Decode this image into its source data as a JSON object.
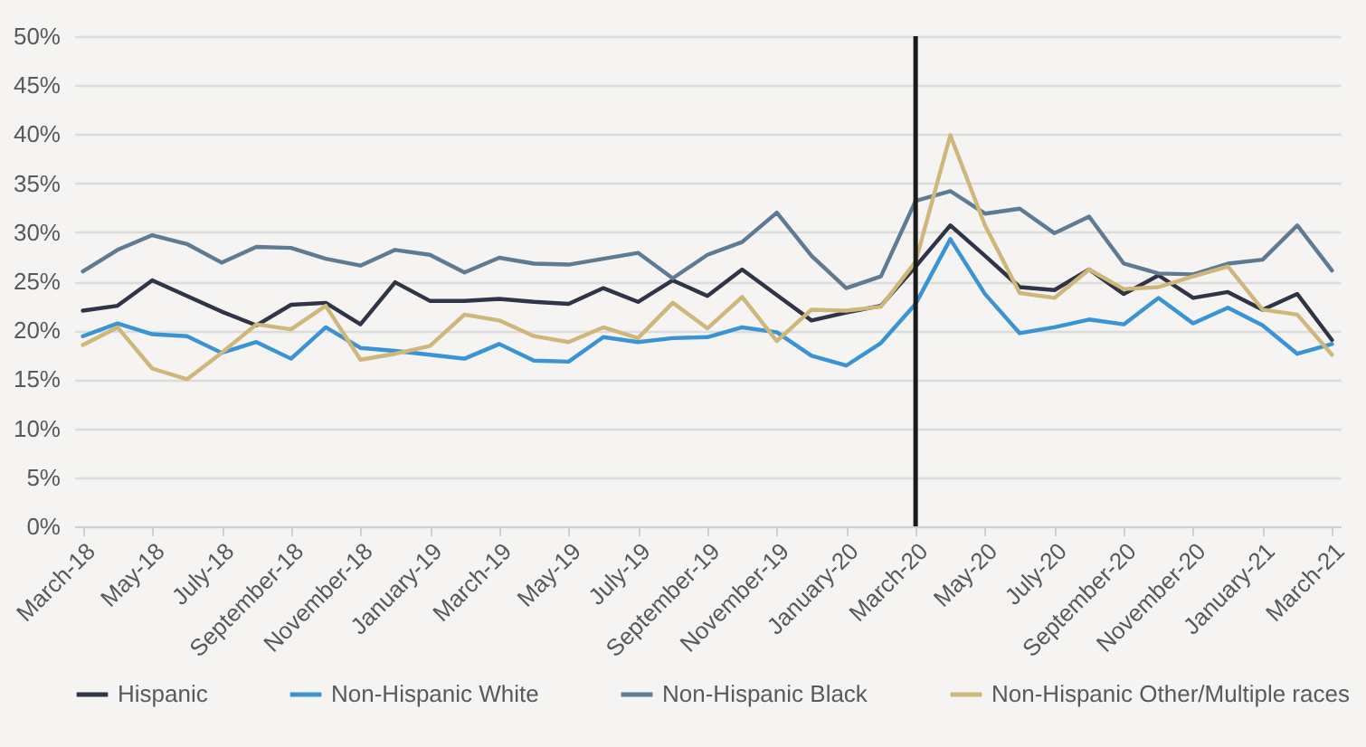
{
  "chart_data": {
    "type": "line",
    "categories": [
      "March-18",
      null,
      "May-18",
      null,
      "July-18",
      null,
      "September-18",
      null,
      "November-18",
      null,
      "January-19",
      null,
      "March-19",
      null,
      "May-19",
      null,
      "July-19",
      null,
      "September-19",
      null,
      "November-19",
      null,
      "January-20",
      null,
      "March-20",
      null,
      "May-20",
      null,
      "July-20",
      null,
      "September-20",
      null,
      "November-20",
      null,
      "January-21",
      null,
      "March-21"
    ],
    "series": [
      {
        "name": "Hispanic",
        "color": "#2f3447",
        "values": [
          22.0,
          22.5,
          25.1,
          23.5,
          21.9,
          20.5,
          22.6,
          22.8,
          20.6,
          24.9,
          23.0,
          23.0,
          23.2,
          22.9,
          22.7,
          24.3,
          22.9,
          25.1,
          23.5,
          26.2,
          23.6,
          21.0,
          21.8,
          22.5,
          26.5,
          30.7,
          27.6,
          24.4,
          24.1,
          26.2,
          23.7,
          25.6,
          23.3,
          23.9,
          22.1,
          23.7,
          19.0
        ]
      },
      {
        "name": "Non-Hispanic White",
        "color": "#3a93d3",
        "values": [
          19.4,
          20.7,
          19.6,
          19.4,
          17.7,
          18.8,
          17.1,
          20.3,
          18.2,
          17.9,
          17.5,
          17.1,
          18.6,
          16.9,
          16.8,
          19.3,
          18.8,
          19.2,
          19.3,
          20.3,
          19.8,
          17.4,
          16.4,
          18.7,
          22.7,
          29.3,
          23.7,
          19.7,
          20.3,
          21.1,
          20.6,
          23.3,
          20.7,
          22.3,
          20.5,
          17.6,
          18.6
        ]
      },
      {
        "name": "Non-Hispanic Black",
        "color": "#5f7a93",
        "values": [
          26.0,
          28.2,
          29.7,
          28.8,
          26.9,
          28.5,
          28.4,
          27.3,
          26.6,
          28.2,
          27.7,
          25.9,
          27.4,
          26.8,
          26.7,
          27.3,
          27.9,
          25.3,
          27.7,
          29.0,
          32.0,
          27.6,
          24.3,
          25.5,
          33.2,
          34.2,
          31.9,
          32.4,
          29.9,
          31.6,
          26.8,
          25.8,
          25.7,
          26.8,
          27.2,
          30.7,
          26.1
        ]
      },
      {
        "name": "Non-Hispanic Other/Multiple races",
        "color": "#cdb77a",
        "values": [
          18.5,
          20.3,
          16.1,
          15.0,
          17.7,
          20.6,
          20.1,
          22.5,
          17.0,
          17.6,
          18.4,
          21.6,
          21.0,
          19.4,
          18.8,
          20.3,
          19.2,
          22.8,
          20.2,
          23.4,
          18.9,
          22.1,
          22.0,
          22.4,
          27.0,
          39.9,
          30.7,
          23.8,
          23.3,
          26.2,
          24.2,
          24.4,
          25.5,
          26.5,
          22.1,
          21.6,
          17.5
        ]
      }
    ],
    "ylim": [
      0,
      50
    ],
    "yticks": [
      {
        "value": 0,
        "label": "0%"
      },
      {
        "value": 5,
        "label": "5%"
      },
      {
        "value": 10,
        "label": "10%"
      },
      {
        "value": 15,
        "label": "15%"
      },
      {
        "value": 20,
        "label": "20%"
      },
      {
        "value": 25,
        "label": "25%"
      },
      {
        "value": 30,
        "label": "30%"
      },
      {
        "value": 35,
        "label": "35%"
      },
      {
        "value": 40,
        "label": "40%"
      },
      {
        "value": 45,
        "label": "45%"
      },
      {
        "value": 50,
        "label": "50%"
      }
    ],
    "ref_lines": [
      {
        "axis": "x",
        "value": "March-20",
        "color": "#1a1a1a"
      }
    ],
    "grid": "y",
    "legend": "bottom",
    "marker": "none",
    "line_style": "solid"
  }
}
